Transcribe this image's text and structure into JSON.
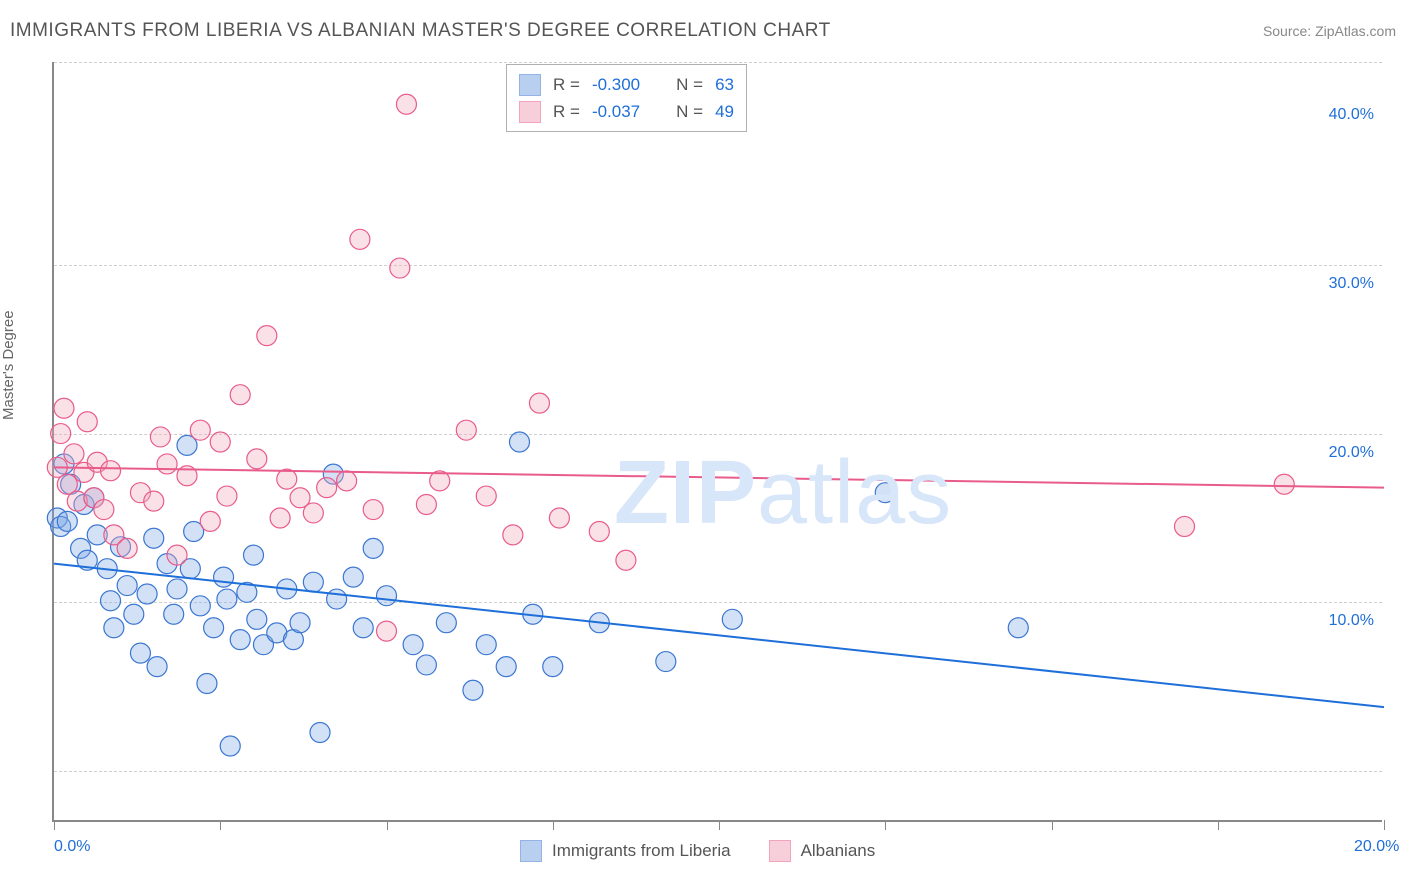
{
  "header": {
    "title": "IMMIGRANTS FROM LIBERIA VS ALBANIAN MASTER'S DEGREE CORRELATION CHART",
    "source": "Source: ZipAtlas.com"
  },
  "watermark": {
    "left": "ZIP",
    "right": "atlas"
  },
  "chart": {
    "type": "scatter",
    "y_axis_label": "Master's Degree",
    "x_range": [
      0,
      20
    ],
    "y_range": [
      -3,
      42
    ],
    "right_y_ticks": [
      {
        "value": 10,
        "label": "10.0%"
      },
      {
        "value": 20,
        "label": "20.0%"
      },
      {
        "value": 30,
        "label": "30.0%"
      },
      {
        "value": 40,
        "label": "40.0%"
      }
    ],
    "x_ticks": [
      {
        "value": 0,
        "label": "0.0%"
      },
      {
        "value": 2.5,
        "label": ""
      },
      {
        "value": 5,
        "label": ""
      },
      {
        "value": 7.5,
        "label": ""
      },
      {
        "value": 10,
        "label": ""
      },
      {
        "value": 12.5,
        "label": ""
      },
      {
        "value": 15,
        "label": ""
      },
      {
        "value": 17.5,
        "label": ""
      },
      {
        "value": 20,
        "label": "20.0%"
      }
    ],
    "grid_y": [
      0,
      10,
      20,
      30,
      42
    ],
    "marker_radius": 10,
    "marker_stroke_width": 1.2,
    "marker_fill_opacity": 0.35,
    "line_width": 2,
    "background": "#ffffff",
    "grid_color": "#d0d0d0",
    "axis_color": "#888888",
    "tick_label_color": "#1e6fd9",
    "axis_label_color": "#666666",
    "series": [
      {
        "id": "liberia",
        "name": "Immigrants from Liberia",
        "fill": "#7fa8e5",
        "stroke": "#3b76d1",
        "r_value": "-0.300",
        "n_value": "63",
        "regression": {
          "x1": 0,
          "y1": 12.3,
          "x2": 20,
          "y2": 3.8,
          "color": "#1e6fd9"
        },
        "points": [
          [
            0.05,
            15.0
          ],
          [
            0.1,
            14.5
          ],
          [
            0.15,
            18.2
          ],
          [
            0.2,
            14.8
          ],
          [
            0.25,
            17.0
          ],
          [
            0.4,
            13.2
          ],
          [
            0.45,
            15.8
          ],
          [
            0.5,
            12.5
          ],
          [
            0.6,
            16.2
          ],
          [
            0.65,
            14.0
          ],
          [
            0.8,
            12.0
          ],
          [
            0.85,
            10.1
          ],
          [
            0.9,
            8.5
          ],
          [
            1.0,
            13.3
          ],
          [
            1.1,
            11.0
          ],
          [
            1.2,
            9.3
          ],
          [
            1.3,
            7.0
          ],
          [
            1.4,
            10.5
          ],
          [
            1.5,
            13.8
          ],
          [
            1.55,
            6.2
          ],
          [
            1.7,
            12.3
          ],
          [
            1.8,
            9.3
          ],
          [
            1.85,
            10.8
          ],
          [
            2.0,
            19.3
          ],
          [
            2.05,
            12.0
          ],
          [
            2.1,
            14.2
          ],
          [
            2.2,
            9.8
          ],
          [
            2.3,
            5.2
          ],
          [
            2.4,
            8.5
          ],
          [
            2.55,
            11.5
          ],
          [
            2.6,
            10.2
          ],
          [
            2.65,
            1.5
          ],
          [
            2.8,
            7.8
          ],
          [
            2.9,
            10.6
          ],
          [
            3.0,
            12.8
          ],
          [
            3.05,
            9.0
          ],
          [
            3.15,
            7.5
          ],
          [
            3.35,
            8.2
          ],
          [
            3.5,
            10.8
          ],
          [
            3.6,
            7.8
          ],
          [
            3.7,
            8.8
          ],
          [
            3.9,
            11.2
          ],
          [
            4.0,
            2.3
          ],
          [
            4.2,
            17.6
          ],
          [
            4.25,
            10.2
          ],
          [
            4.5,
            11.5
          ],
          [
            4.65,
            8.5
          ],
          [
            4.8,
            13.2
          ],
          [
            5.0,
            10.4
          ],
          [
            5.4,
            7.5
          ],
          [
            5.6,
            6.3
          ],
          [
            5.9,
            8.8
          ],
          [
            6.3,
            4.8
          ],
          [
            6.5,
            7.5
          ],
          [
            6.8,
            6.2
          ],
          [
            7.0,
            19.5
          ],
          [
            7.2,
            9.3
          ],
          [
            7.5,
            6.2
          ],
          [
            8.2,
            8.8
          ],
          [
            9.2,
            6.5
          ],
          [
            10.2,
            9.0
          ],
          [
            12.5,
            16.5
          ],
          [
            14.5,
            8.5
          ]
        ]
      },
      {
        "id": "albanians",
        "name": "Albanians",
        "fill": "#f2a8bd",
        "stroke": "#e95b8a",
        "r_value": "-0.037",
        "n_value": "49",
        "regression": {
          "x1": 0,
          "y1": 18.0,
          "x2": 20,
          "y2": 16.8,
          "color": "#e95b8a"
        },
        "points": [
          [
            0.05,
            18.0
          ],
          [
            0.1,
            20.0
          ],
          [
            0.15,
            21.5
          ],
          [
            0.2,
            17.0
          ],
          [
            0.3,
            18.8
          ],
          [
            0.35,
            16.0
          ],
          [
            0.45,
            17.7
          ],
          [
            0.5,
            20.7
          ],
          [
            0.6,
            16.2
          ],
          [
            0.65,
            18.3
          ],
          [
            0.75,
            15.5
          ],
          [
            0.85,
            17.8
          ],
          [
            0.9,
            14.0
          ],
          [
            1.1,
            13.2
          ],
          [
            1.3,
            16.5
          ],
          [
            1.5,
            16.0
          ],
          [
            1.6,
            19.8
          ],
          [
            1.7,
            18.2
          ],
          [
            1.85,
            12.8
          ],
          [
            2.0,
            17.5
          ],
          [
            2.2,
            20.2
          ],
          [
            2.35,
            14.8
          ],
          [
            2.5,
            19.5
          ],
          [
            2.6,
            16.3
          ],
          [
            2.8,
            22.3
          ],
          [
            3.05,
            18.5
          ],
          [
            3.2,
            25.8
          ],
          [
            3.4,
            15.0
          ],
          [
            3.5,
            17.3
          ],
          [
            3.7,
            16.2
          ],
          [
            3.9,
            15.3
          ],
          [
            4.1,
            16.8
          ],
          [
            4.4,
            17.2
          ],
          [
            4.6,
            31.5
          ],
          [
            4.8,
            15.5
          ],
          [
            5.0,
            8.3
          ],
          [
            5.2,
            29.8
          ],
          [
            5.3,
            39.5
          ],
          [
            5.6,
            15.8
          ],
          [
            5.8,
            17.2
          ],
          [
            6.2,
            20.2
          ],
          [
            6.5,
            16.3
          ],
          [
            6.9,
            14.0
          ],
          [
            7.3,
            21.8
          ],
          [
            7.6,
            15.0
          ],
          [
            8.2,
            14.2
          ],
          [
            8.6,
            12.5
          ],
          [
            17.0,
            14.5
          ],
          [
            18.5,
            17.0
          ]
        ]
      }
    ],
    "stats_legend": {
      "r_label": "R =",
      "n_label": "N ="
    },
    "bottom_legend": {}
  }
}
